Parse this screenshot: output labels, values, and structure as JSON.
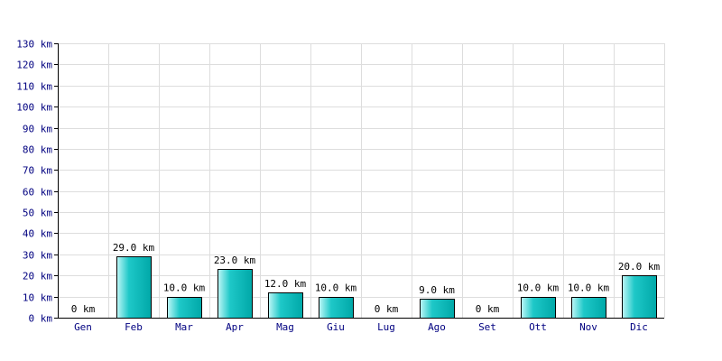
{
  "chart_data": {
    "type": "bar",
    "title": "",
    "xlabel": "",
    "ylabel": "",
    "unit": "km",
    "categories": [
      "Gen",
      "Feb",
      "Mar",
      "Apr",
      "Mag",
      "Giu",
      "Lug",
      "Ago",
      "Set",
      "Ott",
      "Nov",
      "Dic"
    ],
    "values": [
      0,
      29,
      10,
      23,
      12,
      10,
      0,
      9,
      0,
      10,
      10,
      20
    ],
    "data_labels": [
      "0 km",
      "29.0 km",
      "10.0 km",
      "23.0 km",
      "12.0 km",
      "10.0 km",
      "0 km",
      "9.0 km",
      "0 km",
      "10.0 km",
      "10.0 km",
      "20.0 km"
    ],
    "ylim": [
      0,
      130
    ],
    "y_ticks": [
      0,
      10,
      20,
      30,
      40,
      50,
      60,
      70,
      80,
      90,
      100,
      110,
      120,
      130
    ],
    "y_tick_labels": [
      "0 km",
      "10 km",
      "20 km",
      "30 km",
      "40 km",
      "50 km",
      "60 km",
      "70 km",
      "80 km",
      "90 km",
      "100 km",
      "110 km",
      "120 km",
      "130 km"
    ],
    "grid": true,
    "colors": {
      "bar_light": "#bff7f7",
      "bar_mid": "#1ec8c8",
      "bar_dark": "#00a8a8",
      "axis_text": "#000080",
      "grid": "#dddddd"
    }
  }
}
